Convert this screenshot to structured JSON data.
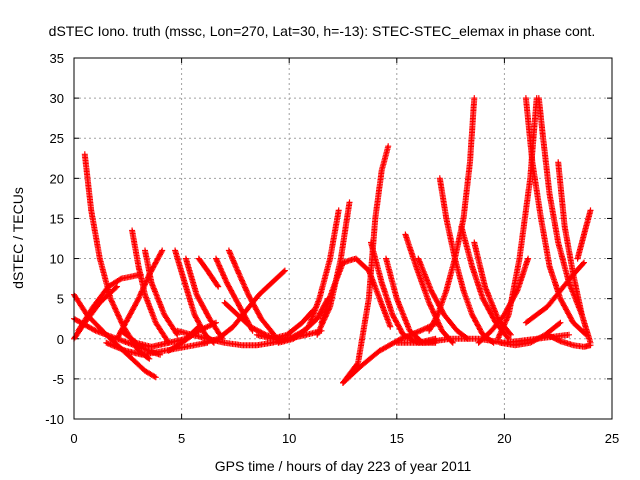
{
  "chart_data": {
    "type": "scatter",
    "title": "dSTEC Iono. truth (mssc, Lon=270, Lat=30, h=-13): STEC-STEC_elemax in phase cont.",
    "xlabel": "GPS time / hours of day 223 of year 2011",
    "ylabel": "dSTEC  / TECUs",
    "xlim": [
      0,
      25
    ],
    "ylim": [
      -10,
      35
    ],
    "xticks": [
      0,
      5,
      10,
      15,
      20,
      25
    ],
    "yticks": [
      -10,
      -5,
      0,
      5,
      10,
      15,
      20,
      25,
      30,
      35
    ],
    "grid": true,
    "marker": "plus",
    "color": "#ff0000",
    "series": [
      {
        "x": [
          0.5,
          0.8,
          1.2,
          1.7,
          2.3,
          3.0,
          3.5
        ],
        "y": [
          23,
          16,
          10,
          5,
          1.5,
          -1.5,
          -2.5
        ]
      },
      {
        "x": [
          0.0,
          0.6,
          1.5,
          2.5,
          3.3,
          3.8
        ],
        "y": [
          5.5,
          3,
          0.5,
          -2,
          -4,
          -4.8
        ]
      },
      {
        "x": [
          0.0,
          0.5,
          1.2,
          2.0
        ],
        "y": [
          0,
          2,
          4.5,
          6.5
        ]
      },
      {
        "x": [
          0.2,
          0.9,
          1.6,
          2.2,
          3.1
        ],
        "y": [
          1,
          4,
          6.5,
          7.5,
          8
        ]
      },
      {
        "x": [
          0.0,
          1.0,
          2.0,
          3.0,
          4.0
        ],
        "y": [
          2.5,
          1,
          0,
          -1,
          -2
        ]
      },
      {
        "x": [
          2.7,
          3.0,
          3.3,
          3.8,
          4.4
        ],
        "y": [
          13.5,
          9,
          5.5,
          2,
          -0.5
        ]
      },
      {
        "x": [
          3.3,
          3.6,
          4.2,
          4.8
        ],
        "y": [
          11,
          7,
          3,
          0.5
        ]
      },
      {
        "x": [
          2.2,
          2.9,
          3.6,
          4.4,
          5.2,
          5.8
        ],
        "y": [
          1,
          -0.5,
          -1,
          -0.5,
          0,
          1.5
        ]
      },
      {
        "x": [
          2.0,
          2.5,
          3.0,
          3.5,
          4.1
        ],
        "y": [
          0,
          2.5,
          5,
          8,
          11
        ]
      },
      {
        "x": [
          4.7,
          5.2,
          5.6,
          6.1,
          6.5
        ],
        "y": [
          11,
          6.5,
          3,
          0.5,
          -0.5
        ]
      },
      {
        "x": [
          5.2,
          5.7,
          6.3,
          6.9
        ],
        "y": [
          10,
          5.5,
          2.5,
          0
        ]
      },
      {
        "x": [
          5.8,
          6.2,
          6.7
        ],
        "y": [
          10,
          8.5,
          6.5
        ]
      },
      {
        "x": [
          6.6,
          7.1,
          7.7,
          8.3
        ],
        "y": [
          10,
          7,
          4,
          1
        ]
      },
      {
        "x": [
          7.2,
          7.6,
          8.1,
          8.7,
          9.3
        ],
        "y": [
          11,
          8.5,
          5.5,
          2.5,
          0.5
        ]
      },
      {
        "x": [
          7.0,
          7.6,
          8.2,
          8.9,
          9.6
        ],
        "y": [
          4.5,
          3,
          1.5,
          0.5,
          0
        ]
      },
      {
        "x": [
          4.8,
          5.5,
          6.2,
          7.0,
          7.8,
          8.5,
          9.2,
          10.0,
          10.8,
          11.5
        ],
        "y": [
          1,
          0.5,
          0,
          -0.5,
          -0.8,
          -0.8,
          -0.5,
          0,
          0.5,
          1
        ]
      },
      {
        "x": [
          4.4,
          5.0,
          5.8,
          6.6
        ],
        "y": [
          -1.5,
          -0.5,
          1,
          2
        ]
      },
      {
        "x": [
          6.0,
          6.7,
          7.4,
          8.0,
          8.6,
          9.2,
          9.8
        ],
        "y": [
          -0.5,
          0,
          1.5,
          3.5,
          5.5,
          7,
          8.5
        ]
      },
      {
        "x": [
          8.5,
          9.2,
          9.9,
          10.6,
          11.1
        ],
        "y": [
          0.5,
          0,
          0.5,
          2,
          3.5
        ]
      },
      {
        "x": [
          9.5,
          10.2,
          10.9,
          11.4,
          11.9,
          12.3
        ],
        "y": [
          -0.5,
          0,
          1.5,
          5,
          10,
          16
        ]
      },
      {
        "x": [
          10.0,
          10.7,
          11.3,
          11.8
        ],
        "y": [
          0,
          1,
          2.5,
          5
        ]
      },
      {
        "x": [
          11.5,
          12.0,
          12.5,
          13.1,
          13.7,
          14.2,
          14.7
        ],
        "y": [
          2,
          6,
          9.5,
          10,
          8.5,
          5,
          1.5
        ]
      },
      {
        "x": [
          11.3,
          11.9,
          12.4,
          12.8
        ],
        "y": [
          0.5,
          4,
          10,
          17
        ]
      },
      {
        "x": [
          12.5,
          13.2,
          13.7,
          14.0,
          14.3,
          14.6
        ],
        "y": [
          -5.5,
          -3,
          5,
          15,
          21,
          24
        ]
      },
      {
        "x": [
          12.5,
          13.3,
          14.2,
          15.2,
          16.1,
          16.9
        ],
        "y": [
          -5.5,
          -3.5,
          -1.5,
          0,
          1,
          2
        ]
      },
      {
        "x": [
          13.8,
          14.3,
          14.8,
          15.3,
          16.0,
          16.8
        ],
        "y": [
          12,
          7,
          3,
          0.5,
          -0.5,
          0
        ]
      },
      {
        "x": [
          14.5,
          15.0,
          15.6,
          16.2,
          16.8
        ],
        "y": [
          10,
          5,
          1,
          -0.5,
          -0.5
        ]
      },
      {
        "x": [
          15.4,
          15.9,
          16.5,
          17.1,
          17.6
        ],
        "y": [
          13,
          9,
          4.5,
          1,
          -0.5
        ]
      },
      {
        "x": [
          16.0,
          16.6,
          17.2,
          17.8,
          18.3
        ],
        "y": [
          10,
          6,
          3,
          1,
          0
        ]
      },
      {
        "x": [
          17.0,
          17.3,
          17.7,
          18.1,
          18.5,
          19.0,
          19.5
        ],
        "y": [
          20,
          15,
          10,
          6,
          3,
          0.5,
          -0.5
        ]
      },
      {
        "x": [
          16.5,
          16.9,
          17.3,
          17.7,
          18.1,
          18.4,
          18.6
        ],
        "y": [
          1,
          3,
          6,
          10,
          15,
          22,
          30
        ]
      },
      {
        "x": [
          18.0,
          18.5,
          19.0,
          19.6,
          20.2
        ],
        "y": [
          14,
          9,
          5,
          2,
          0
        ]
      },
      {
        "x": [
          18.6,
          19.1,
          19.7,
          20.3
        ],
        "y": [
          12,
          6.5,
          2.5,
          0.5
        ]
      },
      {
        "x": [
          19.7,
          20.2,
          20.7,
          21.2,
          21.5
        ],
        "y": [
          0,
          3,
          10,
          20,
          30
        ]
      },
      {
        "x": [
          21.0,
          21.3,
          21.7,
          22.1,
          22.6,
          23.2,
          23.8
        ],
        "y": [
          30,
          22,
          15,
          9,
          5,
          2,
          0.5
        ]
      },
      {
        "x": [
          21.6,
          21.8,
          22.1,
          22.5,
          23.0,
          23.6
        ],
        "y": [
          30,
          25,
          18,
          12,
          7,
          3
        ]
      },
      {
        "x": [
          21.0,
          21.5,
          22.0,
          22.6,
          23.2,
          23.7
        ],
        "y": [
          2,
          3,
          4,
          6,
          8,
          9.5
        ]
      },
      {
        "x": [
          22.5,
          22.8,
          23.2,
          23.6,
          24.0
        ],
        "y": [
          22,
          14,
          8,
          3,
          -0.5
        ]
      },
      {
        "x": [
          22.0,
          22.6,
          23.2,
          23.7,
          24.0
        ],
        "y": [
          0.5,
          -0.3,
          -0.8,
          -1.0,
          -0.8
        ]
      },
      {
        "x": [
          23.4,
          23.7,
          24.0
        ],
        "y": [
          10,
          13,
          16
        ]
      },
      {
        "x": [
          15.0,
          16.2,
          17.5,
          18.8,
          20.0,
          21.5,
          23.0
        ],
        "y": [
          -0.5,
          -0.5,
          0,
          0,
          -0.5,
          0,
          0.5
        ]
      },
      {
        "x": [
          18.8,
          19.4,
          20.0,
          20.6,
          21.1
        ],
        "y": [
          -0.5,
          1,
          3,
          6,
          10
        ]
      },
      {
        "x": [
          19.8,
          20.5,
          21.2,
          21.9,
          22.6
        ],
        "y": [
          -0.5,
          -0.8,
          -0.5,
          0.5,
          2
        ]
      },
      {
        "x": [
          1.5,
          2.4,
          3.2,
          4.2,
          5.2,
          6.2
        ],
        "y": [
          -0.5,
          -1.5,
          -2,
          -1.5,
          -1,
          -0.5
        ]
      }
    ]
  }
}
